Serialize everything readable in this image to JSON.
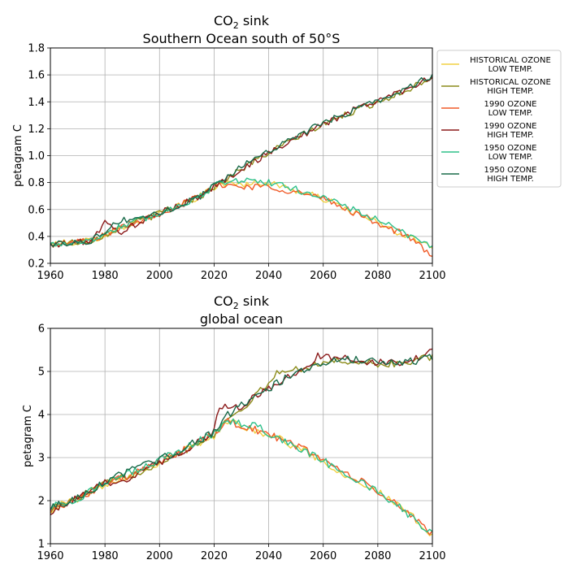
{
  "legend": {
    "entries": [
      {
        "line1": "HISTORICAL OZONE",
        "line2": "LOW TEMP.",
        "color": "#f0d040"
      },
      {
        "line1": "HISTORICAL OZONE",
        "line2": "HIGH TEMP.",
        "color": "#8c8c1a"
      },
      {
        "line1": "1990 OZONE",
        "line2": "LOW TEMP.",
        "color": "#f05a28"
      },
      {
        "line1": "1990 OZONE",
        "line2": "HIGH TEMP.",
        "color": "#8b1a1a"
      },
      {
        "line1": "1950 OZONE",
        "line2": "LOW TEMP.",
        "color": "#2ec08a"
      },
      {
        "line1": "1950 OZONE",
        "line2": "HIGH TEMP.",
        "color": "#1a6b4a"
      }
    ],
    "placement": "right of top panel"
  },
  "chart_data": [
    {
      "type": "line",
      "title_main": "CO",
      "title_sub": "2",
      "title_suffix": " sink",
      "title_line2": "Southern Ocean south of 50°S",
      "ylabel": "petagram C",
      "xlabel": "",
      "xlim": [
        1960,
        2100
      ],
      "ylim": [
        0.2,
        1.8
      ],
      "xticks": [
        "1960",
        "1980",
        "2000",
        "2020",
        "2040",
        "2060",
        "2080",
        "2100"
      ],
      "yticks": [
        "0.2",
        "0.4",
        "0.6",
        "0.8",
        "1.0",
        "1.2",
        "1.4",
        "1.6",
        "1.8"
      ],
      "grid": true,
      "noise": 0.025,
      "series": [
        {
          "name": "HISTORICAL OZONE LOW TEMP.",
          "color": "#f0d040",
          "anchors": [
            [
              1960,
              0.34
            ],
            [
              1975,
              0.37
            ],
            [
              1985,
              0.46
            ],
            [
              2000,
              0.57
            ],
            [
              2015,
              0.7
            ],
            [
              2022,
              0.79
            ],
            [
              2030,
              0.79
            ],
            [
              2040,
              0.8
            ],
            [
              2050,
              0.74
            ],
            [
              2060,
              0.68
            ],
            [
              2070,
              0.59
            ],
            [
              2080,
              0.5
            ],
            [
              2090,
              0.4
            ],
            [
              2100,
              0.33
            ]
          ]
        },
        {
          "name": "HISTORICAL OZONE HIGH TEMP.",
          "color": "#8c8c1a",
          "anchors": [
            [
              1960,
              0.34
            ],
            [
              1975,
              0.37
            ],
            [
              1985,
              0.46
            ],
            [
              2000,
              0.57
            ],
            [
              2015,
              0.7
            ],
            [
              2020,
              0.77
            ],
            [
              2030,
              0.9
            ],
            [
              2040,
              1.02
            ],
            [
              2050,
              1.13
            ],
            [
              2060,
              1.23
            ],
            [
              2070,
              1.32
            ],
            [
              2080,
              1.4
            ],
            [
              2090,
              1.48
            ],
            [
              2100,
              1.59
            ]
          ]
        },
        {
          "name": "1990 OZONE LOW TEMP.",
          "color": "#f05a28",
          "anchors": [
            [
              1960,
              0.34
            ],
            [
              1975,
              0.37
            ],
            [
              1985,
              0.46
            ],
            [
              2000,
              0.57
            ],
            [
              2015,
              0.7
            ],
            [
              2022,
              0.79
            ],
            [
              2030,
              0.77
            ],
            [
              2040,
              0.77
            ],
            [
              2050,
              0.73
            ],
            [
              2060,
              0.68
            ],
            [
              2070,
              0.59
            ],
            [
              2080,
              0.5
            ],
            [
              2090,
              0.41
            ],
            [
              2100,
              0.26
            ]
          ]
        },
        {
          "name": "1990 OZONE HIGH TEMP.",
          "color": "#8b1a1a",
          "anchors": [
            [
              1960,
              0.33
            ],
            [
              1975,
              0.37
            ],
            [
              1980,
              0.5
            ],
            [
              1985,
              0.43
            ],
            [
              2000,
              0.57
            ],
            [
              2015,
              0.7
            ],
            [
              2020,
              0.77
            ],
            [
              2030,
              0.9
            ],
            [
              2040,
              1.02
            ],
            [
              2050,
              1.13
            ],
            [
              2060,
              1.23
            ],
            [
              2070,
              1.33
            ],
            [
              2080,
              1.41
            ],
            [
              2090,
              1.49
            ],
            [
              2100,
              1.59
            ]
          ]
        },
        {
          "name": "1950 OZONE LOW TEMP.",
          "color": "#2ec08a",
          "anchors": [
            [
              1960,
              0.34
            ],
            [
              1975,
              0.37
            ],
            [
              1985,
              0.47
            ],
            [
              2000,
              0.57
            ],
            [
              2015,
              0.7
            ],
            [
              2022,
              0.8
            ],
            [
              2030,
              0.82
            ],
            [
              2040,
              0.8
            ],
            [
              2050,
              0.75
            ],
            [
              2060,
              0.69
            ],
            [
              2070,
              0.61
            ],
            [
              2080,
              0.52
            ],
            [
              2090,
              0.42
            ],
            [
              2100,
              0.33
            ]
          ]
        },
        {
          "name": "1950 OZONE HIGH TEMP.",
          "color": "#1a6b4a",
          "anchors": [
            [
              1960,
              0.34
            ],
            [
              1975,
              0.37
            ],
            [
              1985,
              0.51
            ],
            [
              2000,
              0.57
            ],
            [
              2015,
              0.7
            ],
            [
              2020,
              0.78
            ],
            [
              2030,
              0.92
            ],
            [
              2040,
              1.04
            ],
            [
              2050,
              1.14
            ],
            [
              2060,
              1.24
            ],
            [
              2070,
              1.33
            ],
            [
              2080,
              1.41
            ],
            [
              2090,
              1.49
            ],
            [
              2100,
              1.6
            ]
          ]
        }
      ]
    },
    {
      "type": "line",
      "title_main": "CO",
      "title_sub": "2",
      "title_suffix": " sink",
      "title_line2": "global ocean",
      "ylabel": "petagram C",
      "xlabel": "",
      "xlim": [
        1960,
        2100
      ],
      "ylim": [
        1,
        6
      ],
      "xticks": [
        "1960",
        "1980",
        "2000",
        "2020",
        "2040",
        "2060",
        "2080",
        "2100"
      ],
      "yticks": [
        "1",
        "2",
        "3",
        "4",
        "5",
        "6"
      ],
      "grid": true,
      "noise": 0.09,
      "series": [
        {
          "name": "HISTORICAL OZONE LOW TEMP.",
          "color": "#f0d040",
          "anchors": [
            [
              1960,
              1.8
            ],
            [
              1970,
              2.05
            ],
            [
              1980,
              2.4
            ],
            [
              1990,
              2.6
            ],
            [
              2000,
              2.9
            ],
            [
              2010,
              3.2
            ],
            [
              2020,
              3.5
            ],
            [
              2025,
              3.85
            ],
            [
              2035,
              3.65
            ],
            [
              2045,
              3.4
            ],
            [
              2055,
              3.1
            ],
            [
              2065,
              2.7
            ],
            [
              2075,
              2.4
            ],
            [
              2085,
              2.0
            ],
            [
              2095,
              1.5
            ],
            [
              2100,
              1.2
            ]
          ]
        },
        {
          "name": "HISTORICAL OZONE HIGH TEMP.",
          "color": "#8c8c1a",
          "anchors": [
            [
              1960,
              1.8
            ],
            [
              1970,
              2.05
            ],
            [
              1980,
              2.4
            ],
            [
              1990,
              2.6
            ],
            [
              2000,
              2.9
            ],
            [
              2010,
              3.2
            ],
            [
              2020,
              3.55
            ],
            [
              2025,
              3.9
            ],
            [
              2035,
              4.4
            ],
            [
              2043,
              4.95
            ],
            [
              2050,
              5.05
            ],
            [
              2060,
              5.2
            ],
            [
              2070,
              5.25
            ],
            [
              2080,
              5.15
            ],
            [
              2090,
              5.2
            ],
            [
              2100,
              5.35
            ]
          ]
        },
        {
          "name": "1990 OZONE LOW TEMP.",
          "color": "#f05a28",
          "anchors": [
            [
              1960,
              1.8
            ],
            [
              1970,
              2.05
            ],
            [
              1980,
              2.4
            ],
            [
              1990,
              2.6
            ],
            [
              2000,
              2.9
            ],
            [
              2010,
              3.2
            ],
            [
              2020,
              3.55
            ],
            [
              2025,
              3.85
            ],
            [
              2035,
              3.65
            ],
            [
              2045,
              3.4
            ],
            [
              2055,
              3.15
            ],
            [
              2065,
              2.75
            ],
            [
              2075,
              2.4
            ],
            [
              2085,
              2.0
            ],
            [
              2095,
              1.5
            ],
            [
              2100,
              1.25
            ]
          ]
        },
        {
          "name": "1990 OZONE HIGH TEMP.",
          "color": "#8b1a1a",
          "anchors": [
            [
              1960,
              1.75
            ],
            [
              1970,
              2.05
            ],
            [
              1980,
              2.4
            ],
            [
              1990,
              2.55
            ],
            [
              2000,
              2.9
            ],
            [
              2010,
              3.2
            ],
            [
              2020,
              3.6
            ],
            [
              2022,
              4.2
            ],
            [
              2030,
              4.2
            ],
            [
              2040,
              4.6
            ],
            [
              2050,
              4.95
            ],
            [
              2058,
              5.35
            ],
            [
              2070,
              5.3
            ],
            [
              2080,
              5.2
            ],
            [
              2090,
              5.2
            ],
            [
              2100,
              5.45
            ]
          ]
        },
        {
          "name": "1950 OZONE LOW TEMP.",
          "color": "#2ec08a",
          "anchors": [
            [
              1960,
              1.85
            ],
            [
              1970,
              2.05
            ],
            [
              1980,
              2.4
            ],
            [
              1990,
              2.65
            ],
            [
              2000,
              2.95
            ],
            [
              2010,
              3.25
            ],
            [
              2020,
              3.55
            ],
            [
              2025,
              3.85
            ],
            [
              2035,
              3.75
            ],
            [
              2045,
              3.4
            ],
            [
              2055,
              3.1
            ],
            [
              2065,
              2.75
            ],
            [
              2075,
              2.4
            ],
            [
              2085,
              2.0
            ],
            [
              2095,
              1.5
            ],
            [
              2100,
              1.2
            ]
          ]
        },
        {
          "name": "1950 OZONE HIGH TEMP.",
          "color": "#1a6b4a",
          "anchors": [
            [
              1960,
              1.85
            ],
            [
              1970,
              2.05
            ],
            [
              1980,
              2.45
            ],
            [
              1990,
              2.7
            ],
            [
              2000,
              2.95
            ],
            [
              2010,
              3.25
            ],
            [
              2020,
              3.6
            ],
            [
              2025,
              4.0
            ],
            [
              2035,
              4.4
            ],
            [
              2045,
              4.8
            ],
            [
              2055,
              5.1
            ],
            [
              2065,
              5.3
            ],
            [
              2075,
              5.25
            ],
            [
              2085,
              5.2
            ],
            [
              2095,
              5.25
            ],
            [
              2100,
              5.35
            ]
          ]
        }
      ]
    }
  ]
}
